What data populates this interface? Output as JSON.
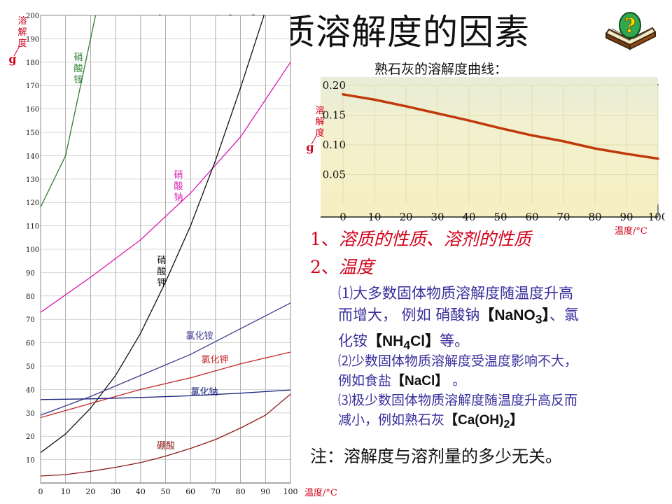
{
  "title": "影响固体物质溶解度的因素",
  "subtitle": "熟石灰的溶解度曲线：",
  "points": [
    {
      "num": "1、",
      "text": "溶质的性质、溶剂的性质"
    },
    {
      "num": "2、",
      "text": "温度"
    }
  ],
  "notes": {
    "n1_line1": "⑴大多数固体物质溶解度随温度升高",
    "n1_line2a": "而增大， 例如 硝酸钠",
    "n1_formula": "【NaNO",
    "n1_sub": "3",
    "n1_close": "】",
    "n1_line2b": "、氯",
    "n1_line3a": "化铵",
    "n1_formula2a": "【NH",
    "n1_sub2": "4",
    "n1_formula2b": "Cl】",
    "n1_line3b": "等。",
    "n2_line1": "⑵少数固体物质溶解度受温度影响不大，",
    "n2_line2a": "例如食盐",
    "n2_formula": "【NaCl】",
    "n2_line2b": " 。",
    "n3_line1": "⑶极少数固体物质溶解度随温度升高反而",
    "n3_line2a": "减小，例如熟石灰",
    "n3_formula": "【Ca(OH)",
    "n3_sub": "2",
    "n3_close": "】"
  },
  "footnote": "注：溶解度与溶剂量的多少无关。",
  "icon": "book-question-icon",
  "colors": {
    "accent_red": "#d0021b",
    "note_blue": "#3a2f9c"
  },
  "chart_data": [
    {
      "type": "line",
      "ylabel_chars": [
        "溶",
        "解",
        "度"
      ],
      "yunit": "g",
      "xlabel": "温度/°C",
      "x_ticks": [
        "0",
        "10",
        "20",
        "30",
        "40",
        "50",
        "60",
        "70",
        "80",
        "90",
        "100"
      ],
      "y_ticks": [
        "10",
        "20",
        "30",
        "40",
        "50",
        "60",
        "70",
        "80",
        "90",
        "100",
        "110",
        "120",
        "130",
        "140",
        "150",
        "160",
        "170",
        "180",
        "190",
        "200"
      ],
      "xlim": [
        0,
        100
      ],
      "ylim": [
        0,
        200
      ],
      "grid": true,
      "series": [
        {
          "name": "硝酸铵",
          "color": "#2e7d32",
          "x": [
            0,
            10,
            20,
            22
          ],
          "y": [
            118,
            140,
            190,
            200
          ]
        },
        {
          "name": "硝酸钠",
          "color": "#d81bb3",
          "x": [
            0,
            20,
            40,
            60,
            80,
            100
          ],
          "y": [
            73,
            88,
            104,
            124,
            148,
            180
          ]
        },
        {
          "name": "硝酸钾",
          "color": "#111111",
          "x": [
            0,
            10,
            20,
            30,
            40,
            50,
            60,
            70,
            80,
            90,
            100
          ],
          "y": [
            13,
            21,
            32,
            46,
            64,
            86,
            110,
            138,
            169,
            202,
            246
          ]
        },
        {
          "name": "氯化铵",
          "color": "#3a3a8c",
          "x": [
            0,
            20,
            40,
            60,
            80,
            100
          ],
          "y": [
            29,
            37,
            46,
            55,
            66,
            77
          ]
        },
        {
          "name": "氯化钾",
          "color": "#c62828",
          "x": [
            0,
            20,
            40,
            60,
            80,
            100
          ],
          "y": [
            28,
            34,
            40,
            45,
            51,
            56
          ]
        },
        {
          "name": "氯化钠",
          "color": "#1a237e",
          "x": [
            0,
            20,
            40,
            60,
            80,
            100
          ],
          "y": [
            35.7,
            36,
            36.6,
            37.3,
            38.4,
            39.8
          ]
        },
        {
          "name": "硼酸",
          "color": "#8b1a1a",
          "x": [
            0,
            10,
            20,
            30,
            40,
            50,
            60,
            70,
            80,
            90,
            100
          ],
          "y": [
            3,
            3.6,
            5,
            6.7,
            8.7,
            11.5,
            14.8,
            18.6,
            23.5,
            29,
            38
          ]
        }
      ]
    },
    {
      "type": "line",
      "ylabel_chars": [
        "溶",
        "解",
        "度"
      ],
      "yunit": "g",
      "xlabel": "温度/°C",
      "x_ticks": [
        "0",
        "10",
        "20",
        "30",
        "40",
        "50",
        "60",
        "70",
        "80",
        "90",
        "100"
      ],
      "y_ticks": [
        "0.20",
        "0.15",
        "0.10",
        "0.05"
      ],
      "xlim": [
        0,
        100
      ],
      "ylim": [
        0,
        0.2
      ],
      "grid": true,
      "series": [
        {
          "name": "熟石灰",
          "color": "#c0390b",
          "x": [
            0,
            10,
            20,
            30,
            40,
            50,
            60,
            70,
            80,
            90,
            100
          ],
          "y": [
            0.185,
            0.176,
            0.165,
            0.153,
            0.141,
            0.128,
            0.116,
            0.106,
            0.094,
            0.085,
            0.077
          ]
        }
      ]
    }
  ]
}
